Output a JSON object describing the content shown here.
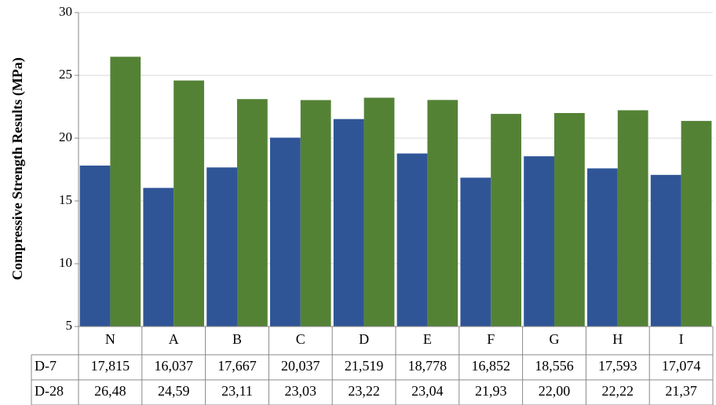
{
  "chart_data": {
    "type": "bar",
    "y_label": "Compressive Strength Results (MPa)",
    "categories": [
      "N",
      "A",
      "B",
      "C",
      "D",
      "E",
      "F",
      "G",
      "H",
      "I"
    ],
    "series": [
      {
        "name": "D-7",
        "color": "#2f5597",
        "values": [
          17.815,
          16.037,
          17.667,
          20.037,
          21.519,
          18.778,
          16.852,
          18.556,
          17.593,
          17.074
        ],
        "value_labels": [
          "17,815",
          "16,037",
          "17,667",
          "20,037",
          "21,519",
          "18,778",
          "16,852",
          "18,556",
          "17,593",
          "17,074"
        ]
      },
      {
        "name": "D-28",
        "color": "#548235",
        "values": [
          26.48,
          24.59,
          23.11,
          23.03,
          23.22,
          23.04,
          21.93,
          22.0,
          22.22,
          21.37
        ],
        "value_labels": [
          "26,48",
          "24,59",
          "23,11",
          "23,03",
          "23,22",
          "23,04",
          "21,93",
          "22,00",
          "22,22",
          "21,37"
        ]
      }
    ],
    "ylim": [
      5,
      30
    ],
    "yticks": [
      5,
      10,
      15,
      20,
      25,
      30
    ],
    "grid": true
  }
}
